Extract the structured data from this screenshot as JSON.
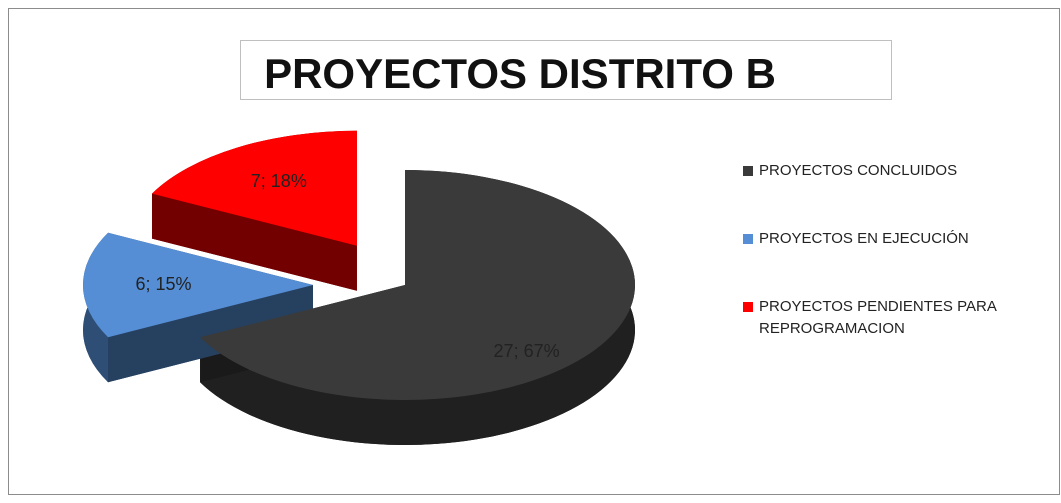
{
  "chart_data": {
    "type": "pie",
    "title": "PROYECTOS DISTRITO B",
    "categories": [
      "PROYECTOS CONCLUIDOS",
      "PROYECTOS EN EJECUCIÓN",
      "PROYECTOS PENDIENTES PARA REPROGRAMACION"
    ],
    "values": [
      27,
      6,
      7
    ],
    "value_labels": [
      "27; 67%",
      "6; 15%",
      "7; 18%"
    ],
    "colors": [
      "#3a3a3a",
      "#558ed5",
      "#ff0000"
    ],
    "exploded": [
      false,
      true,
      true
    ],
    "legend": "right"
  }
}
